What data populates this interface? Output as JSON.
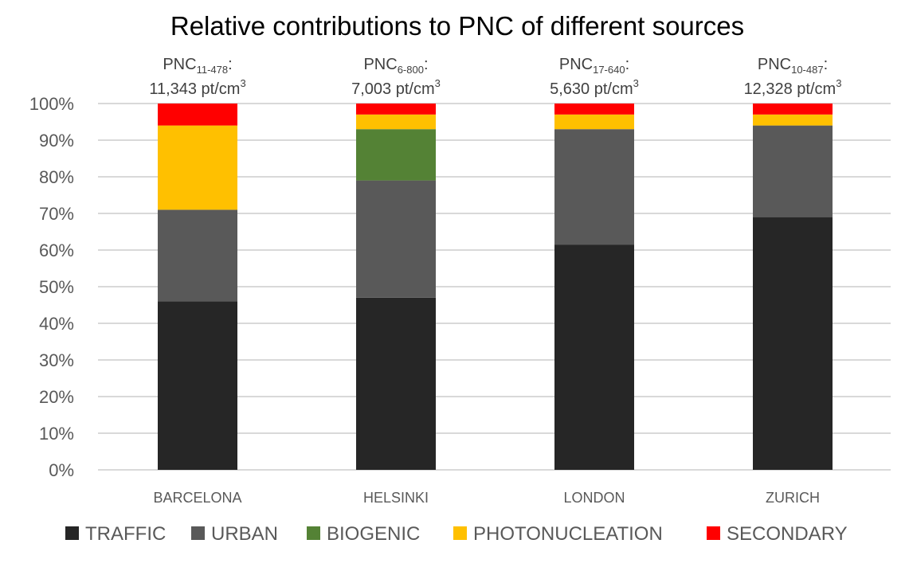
{
  "chart_data": {
    "type": "bar",
    "stacked": true,
    "percent_stacked": true,
    "title": "Relative contributions to PNC of different sources",
    "xlabel": "",
    "ylabel": "",
    "ylim": [
      0,
      100
    ],
    "y_ticks": [
      0,
      10,
      20,
      30,
      40,
      50,
      60,
      70,
      80,
      90,
      100
    ],
    "y_tick_labels": [
      "0%",
      "10%",
      "20%",
      "30%",
      "40%",
      "50%",
      "60%",
      "70%",
      "80%",
      "90%",
      "100%"
    ],
    "grid": "horizontal",
    "legend_position": "bottom",
    "categories": [
      "BARCELONA",
      "HELSINKI",
      "LONDON",
      "ZURICH"
    ],
    "series": [
      {
        "name": "TRAFFIC",
        "color": "#262626",
        "values": [
          46,
          47,
          61.5,
          69
        ]
      },
      {
        "name": "URBAN",
        "color": "#595959",
        "values": [
          25,
          32,
          31.5,
          25
        ]
      },
      {
        "name": "BIOGENIC",
        "color": "#548235",
        "values": [
          0,
          14,
          0,
          0
        ]
      },
      {
        "name": "PHOTONUCLEATION",
        "color": "#ffc000",
        "values": [
          23,
          4,
          4,
          3
        ]
      },
      {
        "name": "SECONDARY",
        "color": "#ff0000",
        "values": [
          6,
          3,
          3,
          3
        ]
      }
    ],
    "annotations": [
      {
        "category": "BARCELONA",
        "prefix": "PNC",
        "subscript": "11-478",
        "suffix": ":",
        "value_text": "11,343 pt/cm",
        "superscript": "3"
      },
      {
        "category": "HELSINKI",
        "prefix": "PNC",
        "subscript": "6-800",
        "suffix": ":",
        "value_text": "7,003 pt/cm",
        "superscript": "3"
      },
      {
        "category": "LONDON",
        "prefix": "PNC",
        "subscript": "17-640",
        "suffix": ":",
        "value_text": "5,630 pt/cm",
        "superscript": "3"
      },
      {
        "category": "ZURICH",
        "prefix": "PNC",
        "subscript": "10-487",
        "suffix": ":",
        "value_text": "12,328 pt/cm",
        "superscript": "3"
      }
    ]
  }
}
